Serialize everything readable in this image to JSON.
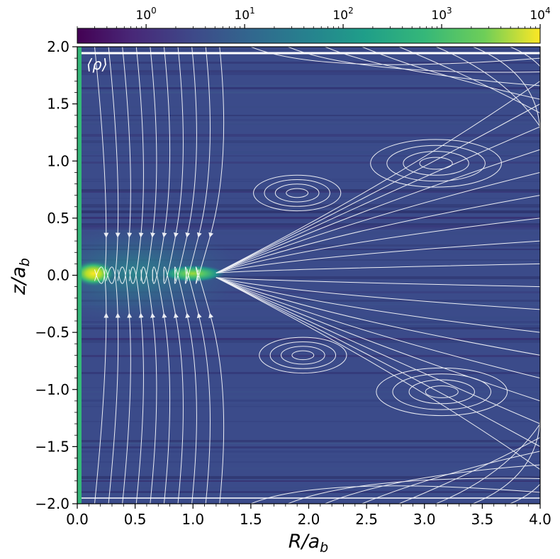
{
  "chart_data": {
    "type": "heatmap",
    "title": "",
    "panel_label": "⟨ρ⟩",
    "xlabel": "R/a_b",
    "ylabel": "z/a_b",
    "xlim": [
      0.0,
      4.0
    ],
    "ylim": [
      -2.0,
      2.0
    ],
    "x_ticks": [
      0.0,
      0.5,
      1.0,
      1.5,
      2.0,
      2.5,
      3.0,
      3.5,
      4.0
    ],
    "y_ticks": [
      -2.0,
      -1.5,
      -1.0,
      -0.5,
      0.0,
      0.5,
      1.0,
      1.5,
      2.0
    ],
    "x_tick_labels": [
      "0.0",
      "0.5",
      "1.0",
      "1.5",
      "2.0",
      "2.5",
      "3.0",
      "3.5",
      "4.0"
    ],
    "y_tick_labels": [
      "−2.0",
      "−1.5",
      "−1.0",
      "−0.5",
      "0.0",
      "0.5",
      "1.0",
      "1.5",
      "2.0"
    ],
    "colorbar": {
      "scale": "log",
      "range": [
        0.2,
        10000
      ],
      "colormap": "viridis",
      "orientation": "horizontal",
      "position": "top",
      "ticks": [
        1,
        10,
        100,
        1000,
        10000
      ],
      "tick_labels": [
        [
          "10",
          "0"
        ],
        [
          "10",
          "1"
        ],
        [
          "10",
          "2"
        ],
        [
          "10",
          "3"
        ],
        [
          "10",
          "4"
        ]
      ]
    },
    "background_level": 1.5,
    "density_peaks": [
      {
        "R": 0.1,
        "z": 0.0,
        "value": 10000
      },
      {
        "R": 0.2,
        "z": -0.02,
        "value": 600
      },
      {
        "R": 1.0,
        "z": 0.0,
        "value": 300
      }
    ],
    "axis_strip": {
      "R": 0.02,
      "value": 150
    },
    "streamlines_overlay": true,
    "stream_color": "#ffffff",
    "vortex_centers": [
      {
        "R": 1.9,
        "z": 0.72,
        "sense": "clockwise"
      },
      {
        "R": 3.1,
        "z": 0.98,
        "sense": "counterclockwise"
      },
      {
        "R": 1.95,
        "z": -0.7,
        "sense": "counterclockwise"
      },
      {
        "R": 3.15,
        "z": -1.02,
        "sense": "clockwise"
      }
    ]
  }
}
